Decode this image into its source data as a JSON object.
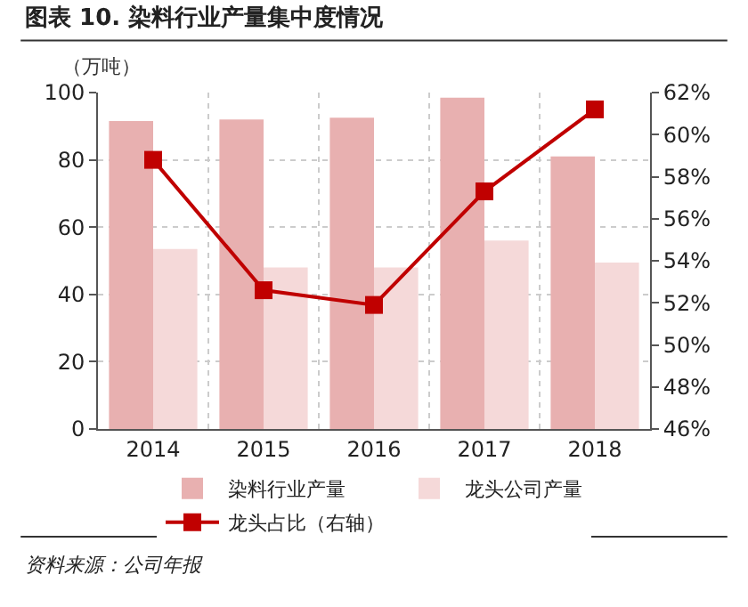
{
  "chart_data": {
    "type": "bar",
    "title": "图表 10. 染料行业产量集中度情况",
    "ylabel": "（万吨）",
    "categories": [
      "2014",
      "2015",
      "2016",
      "2017",
      "2018"
    ],
    "series": [
      {
        "name": "染料行业产量",
        "color": "#e8b0b0",
        "values": [
          91.5,
          92,
          92.5,
          98.5,
          81
        ]
      },
      {
        "name": "龙头公司产量",
        "color": "#f5d9d9",
        "values": [
          53.5,
          48,
          48,
          56,
          49.5
        ]
      },
      {
        "name": "龙头占比（右轴）",
        "type": "line",
        "axis": "y2",
        "color": "#c00000",
        "marker": "square",
        "values": [
          58.8,
          52.6,
          51.9,
          57.3,
          61.2
        ]
      }
    ],
    "ylim": [
      0,
      100
    ],
    "yticks": [
      0,
      20,
      40,
      60,
      80,
      100
    ],
    "y2lim": [
      46,
      62
    ],
    "y2ticks": [
      {
        "value": 46,
        "label": "46%"
      },
      {
        "value": 48,
        "label": "48%"
      },
      {
        "value": 50,
        "label": "50%"
      },
      {
        "value": 52,
        "label": "52%"
      },
      {
        "value": 54,
        "label": "54%"
      },
      {
        "value": 56,
        "label": "56%"
      },
      {
        "value": 58,
        "label": "58%"
      },
      {
        "value": 60,
        "label": "60%"
      },
      {
        "value": 62,
        "label": "62%"
      }
    ],
    "grid": true,
    "legend": "bottom",
    "annotations": [
      "资料来源：公司年报"
    ]
  }
}
